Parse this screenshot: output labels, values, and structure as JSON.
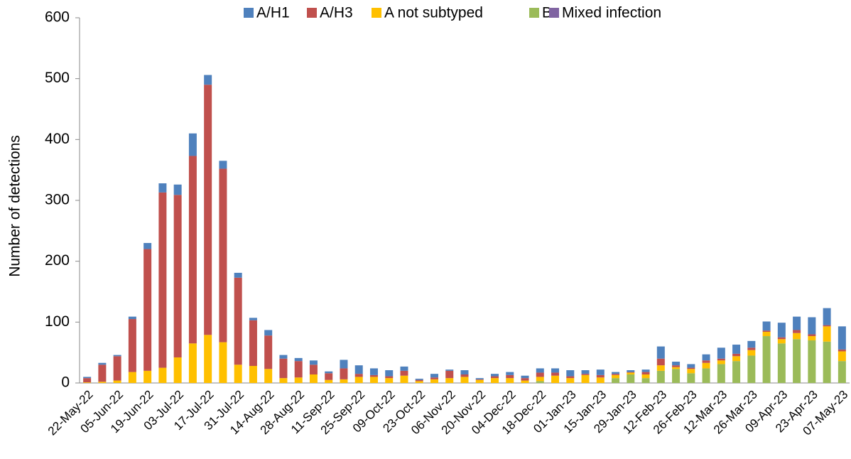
{
  "chart_data": {
    "type": "stacked-bar",
    "y_label": "Number of detections",
    "categories": [
      "22-May-22",
      null,
      "05-Jun-22",
      null,
      "19-Jun-22",
      null,
      "03-Jul-22",
      null,
      "17-Jul-22",
      null,
      "31-Jul-22",
      null,
      "14-Aug-22",
      null,
      "28-Aug-22",
      null,
      "11-Sep-22",
      null,
      "25-Sep-22",
      null,
      "09-Oct-22",
      null,
      "23-Oct-22",
      null,
      "06-Nov-22",
      null,
      "20-Nov-22",
      null,
      "04-Dec-22",
      null,
      "18-Dec-22",
      null,
      "01-Jan-23",
      null,
      "15-Jan-23",
      null,
      "29-Jan-23",
      null,
      "12-Feb-23",
      null,
      "26-Feb-23",
      null,
      "12-Mar-23",
      null,
      "26-Mar-23",
      null,
      "09-Apr-23",
      null,
      "23-Apr-23",
      null,
      "07-May-23"
    ],
    "series": [
      {
        "name": "A/H1",
        "color": "#4f81bd",
        "values": [
          2,
          3,
          2,
          4,
          10,
          15,
          17,
          37,
          16,
          13,
          8,
          4,
          9,
          6,
          5,
          7,
          3,
          14,
          14,
          11,
          10,
          7,
          2,
          6,
          2,
          7,
          2,
          4,
          5,
          4,
          7,
          7,
          10,
          6,
          9,
          3,
          3,
          4,
          20,
          6,
          6,
          10,
          18,
          15,
          11,
          15,
          24,
          22,
          28,
          28,
          38
        ]
      },
      {
        "name": "A/H3",
        "color": "#c0504d",
        "values": [
          7,
          28,
          40,
          87,
          200,
          288,
          267,
          308,
          411,
          285,
          143,
          75,
          55,
          32,
          27,
          16,
          11,
          18,
          5,
          3,
          3,
          8,
          2,
          3,
          12,
          4,
          1,
          3,
          5,
          4,
          7,
          5,
          3,
          2,
          4,
          2,
          1,
          4,
          11,
          3,
          2,
          4,
          3,
          4,
          4,
          2,
          3,
          5,
          3,
          2,
          3
        ]
      },
      {
        "name": "A not subtyped",
        "color": "#ffc000",
        "values": [
          1,
          2,
          4,
          18,
          20,
          25,
          42,
          65,
          79,
          67,
          30,
          28,
          23,
          8,
          9,
          14,
          5,
          6,
          10,
          10,
          8,
          12,
          3,
          6,
          8,
          10,
          5,
          8,
          8,
          4,
          7,
          12,
          8,
          13,
          9,
          5,
          3,
          6,
          9,
          3,
          7,
          9,
          6,
          8,
          9,
          7,
          7,
          10,
          7,
          25,
          16
        ]
      },
      {
        "name": "B",
        "color": "#9bbb59",
        "values": [
          0,
          0,
          0,
          0,
          0,
          0,
          0,
          0,
          0,
          0,
          0,
          0,
          0,
          0,
          0,
          0,
          0,
          0,
          0,
          0,
          0,
          0,
          0,
          0,
          0,
          0,
          0,
          0,
          0,
          0,
          3,
          0,
          0,
          0,
          0,
          8,
          14,
          8,
          20,
          23,
          16,
          24,
          31,
          36,
          45,
          77,
          65,
          72,
          70,
          68,
          36
        ]
      },
      {
        "name": "Mixed infection",
        "color": "#8064a2",
        "values": [
          0,
          0,
          0,
          0,
          0,
          0,
          0,
          0,
          0,
          0,
          0,
          0,
          0,
          0,
          0,
          0,
          0,
          0,
          0,
          0,
          0,
          0,
          0,
          0,
          0,
          0,
          0,
          0,
          0,
          0,
          0,
          0,
          0,
          0,
          0,
          0,
          0,
          0,
          0,
          0,
          0,
          0,
          0,
          0,
          0,
          0,
          0,
          0,
          0,
          0,
          0
        ]
      }
    ],
    "ylim": [
      0,
      600
    ],
    "yticks": [
      0,
      100,
      200,
      300,
      400,
      500,
      600
    ]
  }
}
